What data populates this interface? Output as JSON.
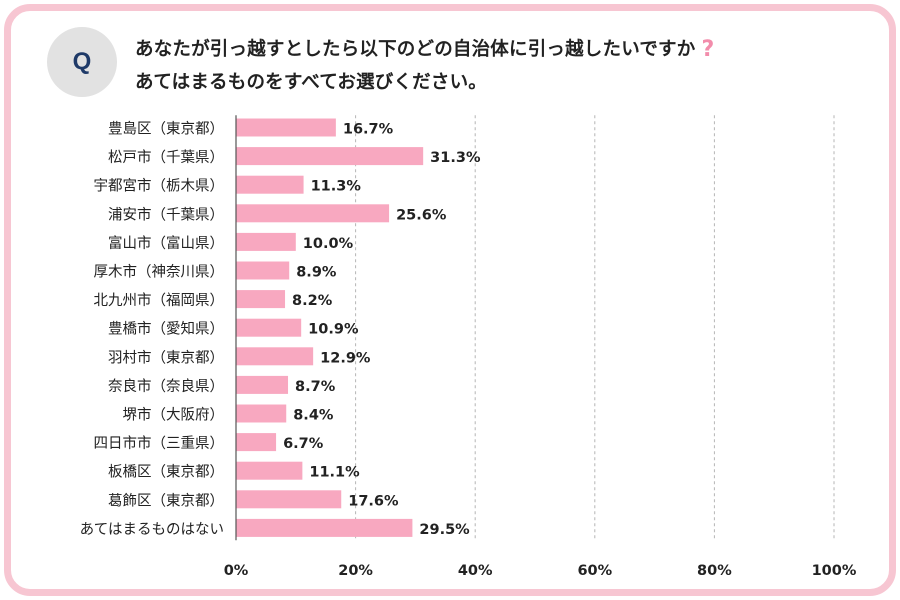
{
  "question": {
    "badge": "Q",
    "line1": "あなたが引っ越すとしたら以下のどの自治体に引っ越したいですか",
    "mark": "?",
    "line2": "あてはまるものをすべてお選びください。"
  },
  "colors": {
    "bar": "#f8a8c0",
    "frame": "#f7c6d2",
    "accent": "#f28cab",
    "badge_bg": "#e2e2e2",
    "badge_text": "#1f3a68"
  },
  "chart_data": {
    "type": "bar",
    "orientation": "horizontal",
    "categories": [
      "豊島区（東京都）",
      "松戸市（千葉県）",
      "宇都宮市（栃木県）",
      "浦安市（千葉県）",
      "富山市（富山県）",
      "厚木市（神奈川県）",
      "北九州市（福岡県）",
      "豊橋市（愛知県）",
      "羽村市（東京都）",
      "奈良市（奈良県）",
      "堺市（大阪府）",
      "四日市市（三重県）",
      "板橋区（東京都）",
      "葛飾区（東京都）",
      "あてはまるものはない"
    ],
    "values": [
      16.7,
      31.3,
      11.3,
      25.6,
      10.0,
      8.9,
      8.2,
      10.9,
      12.9,
      8.7,
      8.4,
      6.7,
      11.1,
      17.6,
      29.5
    ],
    "value_labels": [
      "16.7%",
      "31.3%",
      "11.3%",
      "25.6%",
      "10.0%",
      "8.9%",
      "8.2%",
      "10.9%",
      "12.9%",
      "8.7%",
      "8.4%",
      "6.7%",
      "11.1%",
      "17.6%",
      "29.5%"
    ],
    "xlim": [
      0,
      100
    ],
    "xticks": [
      0,
      20,
      40,
      60,
      80,
      100
    ],
    "xtick_labels": [
      "0%",
      "20%",
      "40%",
      "60%",
      "80%",
      "100%"
    ],
    "grid": "vertical-dashed",
    "legend": "none"
  }
}
